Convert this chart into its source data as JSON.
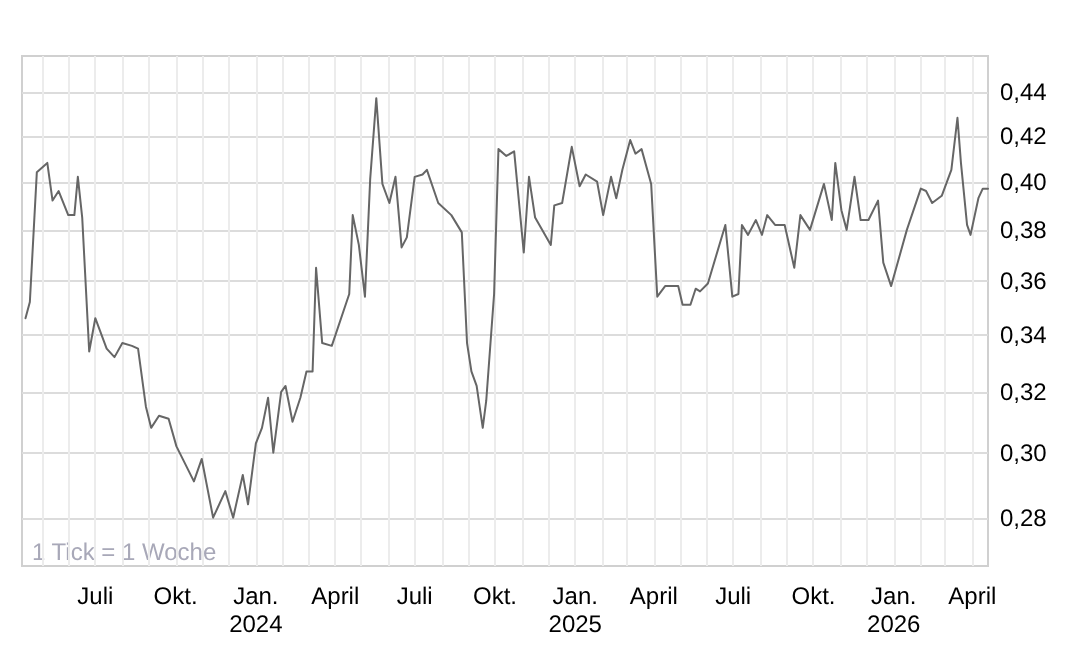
{
  "chart_data": {
    "type": "line",
    "annotations": [
      "1 Tick = 1 Woche"
    ],
    "x": [
      "2023-04-12",
      "2023-04-17",
      "2023-04-25",
      "2023-05-07",
      "2023-05-13",
      "2023-05-20",
      "2023-05-31",
      "2023-06-07",
      "2023-06-11",
      "2023-06-16",
      "2023-06-24",
      "2023-07-01",
      "2023-07-14",
      "2023-07-23",
      "2023-08-01",
      "2023-08-12",
      "2023-08-19",
      "2023-08-28",
      "2023-09-03",
      "2023-09-12",
      "2023-09-23",
      "2023-10-02",
      "2023-10-22",
      "2023-10-31",
      "2023-11-13",
      "2023-11-27",
      "2023-12-06",
      "2023-12-17",
      "2023-12-23",
      "2024-01-01",
      "2024-01-08",
      "2024-01-15",
      "2024-01-21",
      "2024-01-30",
      "2024-02-04",
      "2024-02-12",
      "2024-02-21",
      "2024-02-28",
      "2024-03-06",
      "2024-03-10",
      "2024-03-17",
      "2024-03-28",
      "2024-04-17",
      "2024-04-21",
      "2024-04-28",
      "2024-05-05",
      "2024-05-11",
      "2024-05-18",
      "2024-05-25",
      "2024-06-02",
      "2024-06-09",
      "2024-06-16",
      "2024-06-22",
      "2024-07-01",
      "2024-07-10",
      "2024-07-15",
      "2024-07-28",
      "2024-08-12",
      "2024-08-24",
      "2024-08-30",
      "2024-09-04",
      "2024-09-10",
      "2024-09-17",
      "2024-09-21",
      "2024-09-30",
      "2024-10-05",
      "2024-10-14",
      "2024-10-23",
      "2024-11-03",
      "2024-11-09",
      "2024-11-16",
      "2024-12-04",
      "2024-12-08",
      "2024-12-17",
      "2024-12-28",
      "2025-01-06",
      "2025-01-13",
      "2025-01-26",
      "2025-02-02",
      "2025-02-11",
      "2025-02-17",
      "2025-02-24",
      "2025-03-05",
      "2025-03-11",
      "2025-03-18",
      "2025-03-29",
      "2025-04-05",
      "2025-04-14",
      "2025-04-29",
      "2025-05-04",
      "2025-05-13",
      "2025-05-19",
      "2025-05-24",
      "2025-06-02",
      "2025-06-22",
      "2025-06-30",
      "2025-07-07",
      "2025-07-11",
      "2025-07-18",
      "2025-07-27",
      "2025-08-03",
      "2025-08-09",
      "2025-08-18",
      "2025-08-29",
      "2025-09-09",
      "2025-09-16",
      "2025-09-27",
      "2025-10-13",
      "2025-10-22",
      "2025-10-26",
      "2025-11-02",
      "2025-11-08",
      "2025-11-17",
      "2025-11-24",
      "2025-12-03",
      "2025-12-14",
      "2025-12-20",
      "2025-12-29",
      "2026-01-16",
      "2026-02-01",
      "2026-02-07",
      "2026-02-14",
      "2026-02-25",
      "2026-03-08",
      "2026-03-15",
      "2026-03-19",
      "2026-03-26",
      "2026-03-30",
      "2026-04-08",
      "2026-04-13",
      "2026-04-19"
    ],
    "series": [
      {
        "color": "#666666",
        "values": [
          0.346,
          0.352,
          0.404,
          0.408,
          0.392,
          0.396,
          0.386,
          0.386,
          0.402,
          0.385,
          0.334,
          0.346,
          0.335,
          0.332,
          0.337,
          0.336,
          0.335,
          0.315,
          0.308,
          0.312,
          0.311,
          0.302,
          0.291,
          0.298,
          0.28,
          0.288,
          0.28,
          0.293,
          0.284,
          0.303,
          0.308,
          0.318,
          0.3,
          0.32,
          0.322,
          0.31,
          0.318,
          0.327,
          0.327,
          0.365,
          0.337,
          0.336,
          0.355,
          0.386,
          0.374,
          0.354,
          0.401,
          0.437,
          0.399,
          0.391,
          0.402,
          0.373,
          0.377,
          0.402,
          0.403,
          0.405,
          0.391,
          0.386,
          0.379,
          0.337,
          0.327,
          0.322,
          0.308,
          0.317,
          0.355,
          0.414,
          0.411,
          0.413,
          0.371,
          0.402,
          0.385,
          0.374,
          0.39,
          0.391,
          0.415,
          0.398,
          0.403,
          0.4,
          0.386,
          0.402,
          0.393,
          0.405,
          0.418,
          0.412,
          0.414,
          0.399,
          0.354,
          0.358,
          0.358,
          0.351,
          0.351,
          0.357,
          0.356,
          0.359,
          0.382,
          0.354,
          0.355,
          0.382,
          0.378,
          0.384,
          0.378,
          0.386,
          0.382,
          0.382,
          0.365,
          0.386,
          0.38,
          0.399,
          0.384,
          0.408,
          0.388,
          0.38,
          0.402,
          0.384,
          0.384,
          0.392,
          0.367,
          0.358,
          0.38,
          0.397,
          0.396,
          0.391,
          0.394,
          0.405,
          0.428,
          0.408,
          0.382,
          0.378,
          0.393,
          0.397,
          0.397
        ]
      }
    ],
    "log": true,
    "xlim": [
      "2023-04-08",
      "2026-04-19"
    ],
    "ylim": [
      0.266,
      0.457
    ],
    "yticks": [
      {
        "value": 0.28,
        "label": "0,28"
      },
      {
        "value": 0.3,
        "label": "0,30"
      },
      {
        "value": 0.32,
        "label": "0,32"
      },
      {
        "value": 0.34,
        "label": "0,34"
      },
      {
        "value": 0.36,
        "label": "0,36"
      },
      {
        "value": 0.38,
        "label": "0,38"
      },
      {
        "value": 0.4,
        "label": "0,40"
      },
      {
        "value": 0.42,
        "label": "0,42"
      },
      {
        "value": 0.44,
        "label": "0,44"
      }
    ],
    "xticks": [
      {
        "value": "2023-05-01",
        "label": null
      },
      {
        "value": "2023-06-01",
        "label": null
      },
      {
        "value": "2023-07-01",
        "label": "Juli"
      },
      {
        "value": "2023-08-01",
        "label": null
      },
      {
        "value": "2023-09-01",
        "label": null
      },
      {
        "value": "2023-10-01",
        "label": "Okt."
      },
      {
        "value": "2023-11-01",
        "label": null
      },
      {
        "value": "2023-12-01",
        "label": null
      },
      {
        "value": "2024-01-01",
        "label": "Jan.\n2024"
      },
      {
        "value": "2024-02-01",
        "label": null
      },
      {
        "value": "2024-03-01",
        "label": null
      },
      {
        "value": "2024-04-01",
        "label": "April"
      },
      {
        "value": "2024-05-01",
        "label": null
      },
      {
        "value": "2024-06-01",
        "label": null
      },
      {
        "value": "2024-07-01",
        "label": "Juli"
      },
      {
        "value": "2024-08-01",
        "label": null
      },
      {
        "value": "2024-09-01",
        "label": null
      },
      {
        "value": "2024-10-01",
        "label": "Okt."
      },
      {
        "value": "2024-11-01",
        "label": null
      },
      {
        "value": "2024-12-01",
        "label": null
      },
      {
        "value": "2025-01-01",
        "label": "Jan.\n2025"
      },
      {
        "value": "2025-02-01",
        "label": null
      },
      {
        "value": "2025-03-01",
        "label": null
      },
      {
        "value": "2025-04-01",
        "label": "April"
      },
      {
        "value": "2025-05-01",
        "label": null
      },
      {
        "value": "2025-06-01",
        "label": null
      },
      {
        "value": "2025-07-01",
        "label": "Juli"
      },
      {
        "value": "2025-08-01",
        "label": null
      },
      {
        "value": "2025-09-01",
        "label": null
      },
      {
        "value": "2025-10-01",
        "label": "Okt."
      },
      {
        "value": "2025-11-01",
        "label": null
      },
      {
        "value": "2025-12-01",
        "label": null
      },
      {
        "value": "2026-01-01",
        "label": "Jan.\n2026"
      },
      {
        "value": "2026-02-01",
        "label": null
      },
      {
        "value": "2026-03-01",
        "label": null
      },
      {
        "value": "2026-04-01",
        "label": "April"
      }
    ],
    "grid": true,
    "marker": "none",
    "line_style": "solid"
  }
}
